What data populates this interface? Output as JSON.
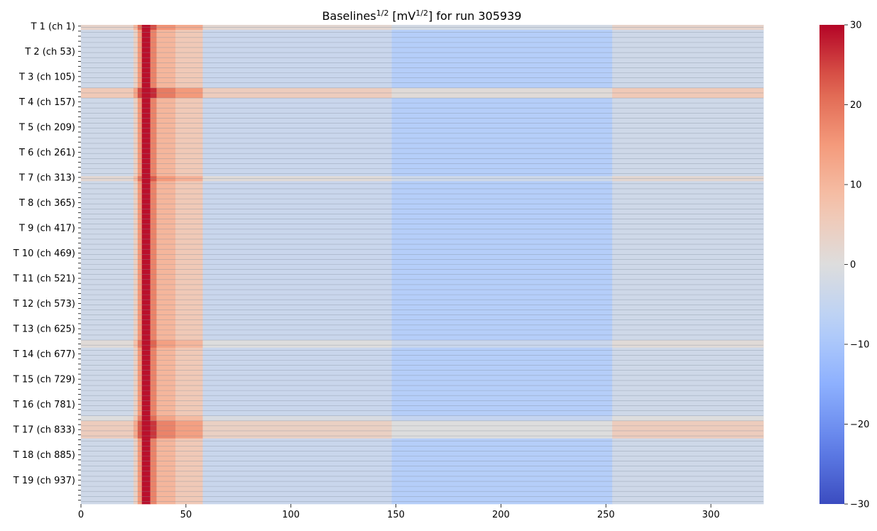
{
  "chart_data": {
    "type": "heatmap",
    "title": {
      "prefix": "Baselines",
      "prefix_sup": "1/2",
      "middle": " [mV",
      "middle_sup": "1/2",
      "suffix": "] for run 305939"
    },
    "xlabel": "",
    "ylabel": "",
    "x_range": [
      0,
      325
    ],
    "x_ticks": [
      0,
      50,
      100,
      150,
      200,
      250,
      300
    ],
    "rows": 190,
    "row_tick_labels": [
      "T 1 (ch 1)",
      "T 2 (ch 53)",
      "T 3 (ch 105)",
      "T 4 (ch 157)",
      "T 5 (ch 209)",
      "T 6 (ch 261)",
      "T 7 (ch 313)",
      "T 8 (ch 365)",
      "T 9 (ch 417)",
      "T 10 (ch 469)",
      "T 11 (ch 521)",
      "T 12 (ch 573)",
      "T 13 (ch 625)",
      "T 14 (ch 677)",
      "T 15 (ch 729)",
      "T 16 (ch 781)",
      "T 17 (ch 833)",
      "T 18 (ch 885)",
      "T 19 (ch 937)"
    ],
    "colorbar": {
      "colormap": "coolwarm",
      "range": [
        -30,
        30
      ],
      "ticks": [
        -30,
        -20,
        -10,
        0,
        10,
        20,
        30
      ]
    },
    "column_profile": [
      {
        "x": [
          0,
          25
        ],
        "value": -3
      },
      {
        "x": [
          25,
          27
        ],
        "value": 4
      },
      {
        "x": [
          27,
          29
        ],
        "value": 15
      },
      {
        "x": [
          29,
          33
        ],
        "value": 29
      },
      {
        "x": [
          33,
          36
        ],
        "value": 18
      },
      {
        "x": [
          36,
          45
        ],
        "value": 10
      },
      {
        "x": [
          45,
          58
        ],
        "value": 6
      },
      {
        "x": [
          58,
          148
        ],
        "value": -4
      },
      {
        "x": [
          148,
          253
        ],
        "value": -8
      },
      {
        "x": [
          253,
          325
        ],
        "value": -3
      }
    ],
    "row_offsets": [
      {
        "rows": [
          0,
          1
        ],
        "value": 6
      },
      {
        "rows": [
          25,
          28
        ],
        "value": 9
      },
      {
        "rows": [
          60,
          61
        ],
        "value": 5
      },
      {
        "rows": [
          125,
          127
        ],
        "value": 4
      },
      {
        "rows": [
          155,
          156
        ],
        "value": 3
      },
      {
        "rows": [
          157,
          163
        ],
        "value": 8
      }
    ]
  }
}
